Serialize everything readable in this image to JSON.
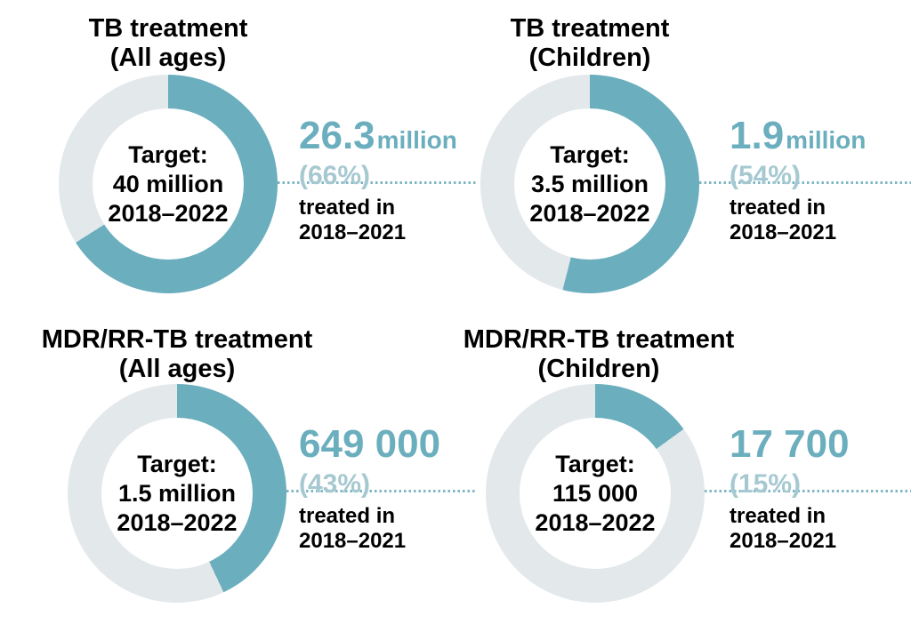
{
  "colors": {
    "fill": "#6BAEBE",
    "track": "#E3E8EB",
    "number": "#6BAEBE",
    "pct": "#A6C9D1",
    "dotted": "#7FB6C4",
    "text": "#000000"
  },
  "quadrants": [
    {
      "title_line1": "TB treatment",
      "title_line2": "(All ages)",
      "target_label": "Target:",
      "target_value": "40 million",
      "target_period": "2018–2022",
      "pct": 66,
      "stat_value": "26.3",
      "stat_unit": "million",
      "stat_pct": "(66%)",
      "treated_line1": "treated in",
      "treated_line2": "2018–2021"
    },
    {
      "title_line1": "TB treatment",
      "title_line2": "(Children)",
      "target_label": "Target:",
      "target_value": "3.5 million",
      "target_period": "2018–2022",
      "pct": 54,
      "stat_value": "1.9",
      "stat_unit": "million",
      "stat_pct": "(54%)",
      "treated_line1": "treated in",
      "treated_line2": "2018–2021"
    },
    {
      "title_line1": "MDR/RR-TB treatment",
      "title_line2": "(All ages)",
      "target_label": "Target:",
      "target_value": "1.5 million",
      "target_period": "2018–2022",
      "pct": 43,
      "stat_value": "649 000",
      "stat_unit": "",
      "stat_pct": "(43%)",
      "treated_line1": "treated in",
      "treated_line2": "2018–2021"
    },
    {
      "title_line1": "MDR/RR-TB treatment",
      "title_line2": "(Children)",
      "target_label": "Target:",
      "target_value": "115 000",
      "target_period": "2018–2022",
      "pct": 15,
      "stat_value": "17 700",
      "stat_unit": "",
      "stat_pct": "(15%)",
      "treated_line1": "treated in",
      "treated_line2": "2018–2021"
    }
  ],
  "chart_data": [
    {
      "type": "pie",
      "style": "donut",
      "title": "TB treatment (All ages)",
      "labels": [
        "treated in 2018–2021",
        "remaining to target"
      ],
      "values": [
        66,
        34
      ],
      "treated_value": "26.3 million",
      "treated_pct": "66%",
      "target": "40 million 2018–2022",
      "legend": "none",
      "start_angle_deg": 0,
      "direction": "clockwise"
    },
    {
      "type": "pie",
      "style": "donut",
      "title": "TB treatment (Children)",
      "labels": [
        "treated in 2018–2021",
        "remaining to target"
      ],
      "values": [
        54,
        46
      ],
      "treated_value": "1.9 million",
      "treated_pct": "54%",
      "target": "3.5 million 2018–2022",
      "legend": "none",
      "start_angle_deg": 0,
      "direction": "clockwise"
    },
    {
      "type": "pie",
      "style": "donut",
      "title": "MDR/RR-TB treatment (All ages)",
      "labels": [
        "treated in 2018–2021",
        "remaining to target"
      ],
      "values": [
        43,
        57
      ],
      "treated_value": "649 000",
      "treated_pct": "43%",
      "target": "1.5 million 2018–2022",
      "legend": "none",
      "start_angle_deg": 0,
      "direction": "clockwise"
    },
    {
      "type": "pie",
      "style": "donut",
      "title": "MDR/RR-TB treatment (Children)",
      "labels": [
        "treated in 2018–2021",
        "remaining to target"
      ],
      "values": [
        15,
        85
      ],
      "treated_value": "17 700",
      "treated_pct": "15%",
      "target": "115 000 2018–2022",
      "legend": "none",
      "start_angle_deg": 0,
      "direction": "clockwise"
    }
  ]
}
